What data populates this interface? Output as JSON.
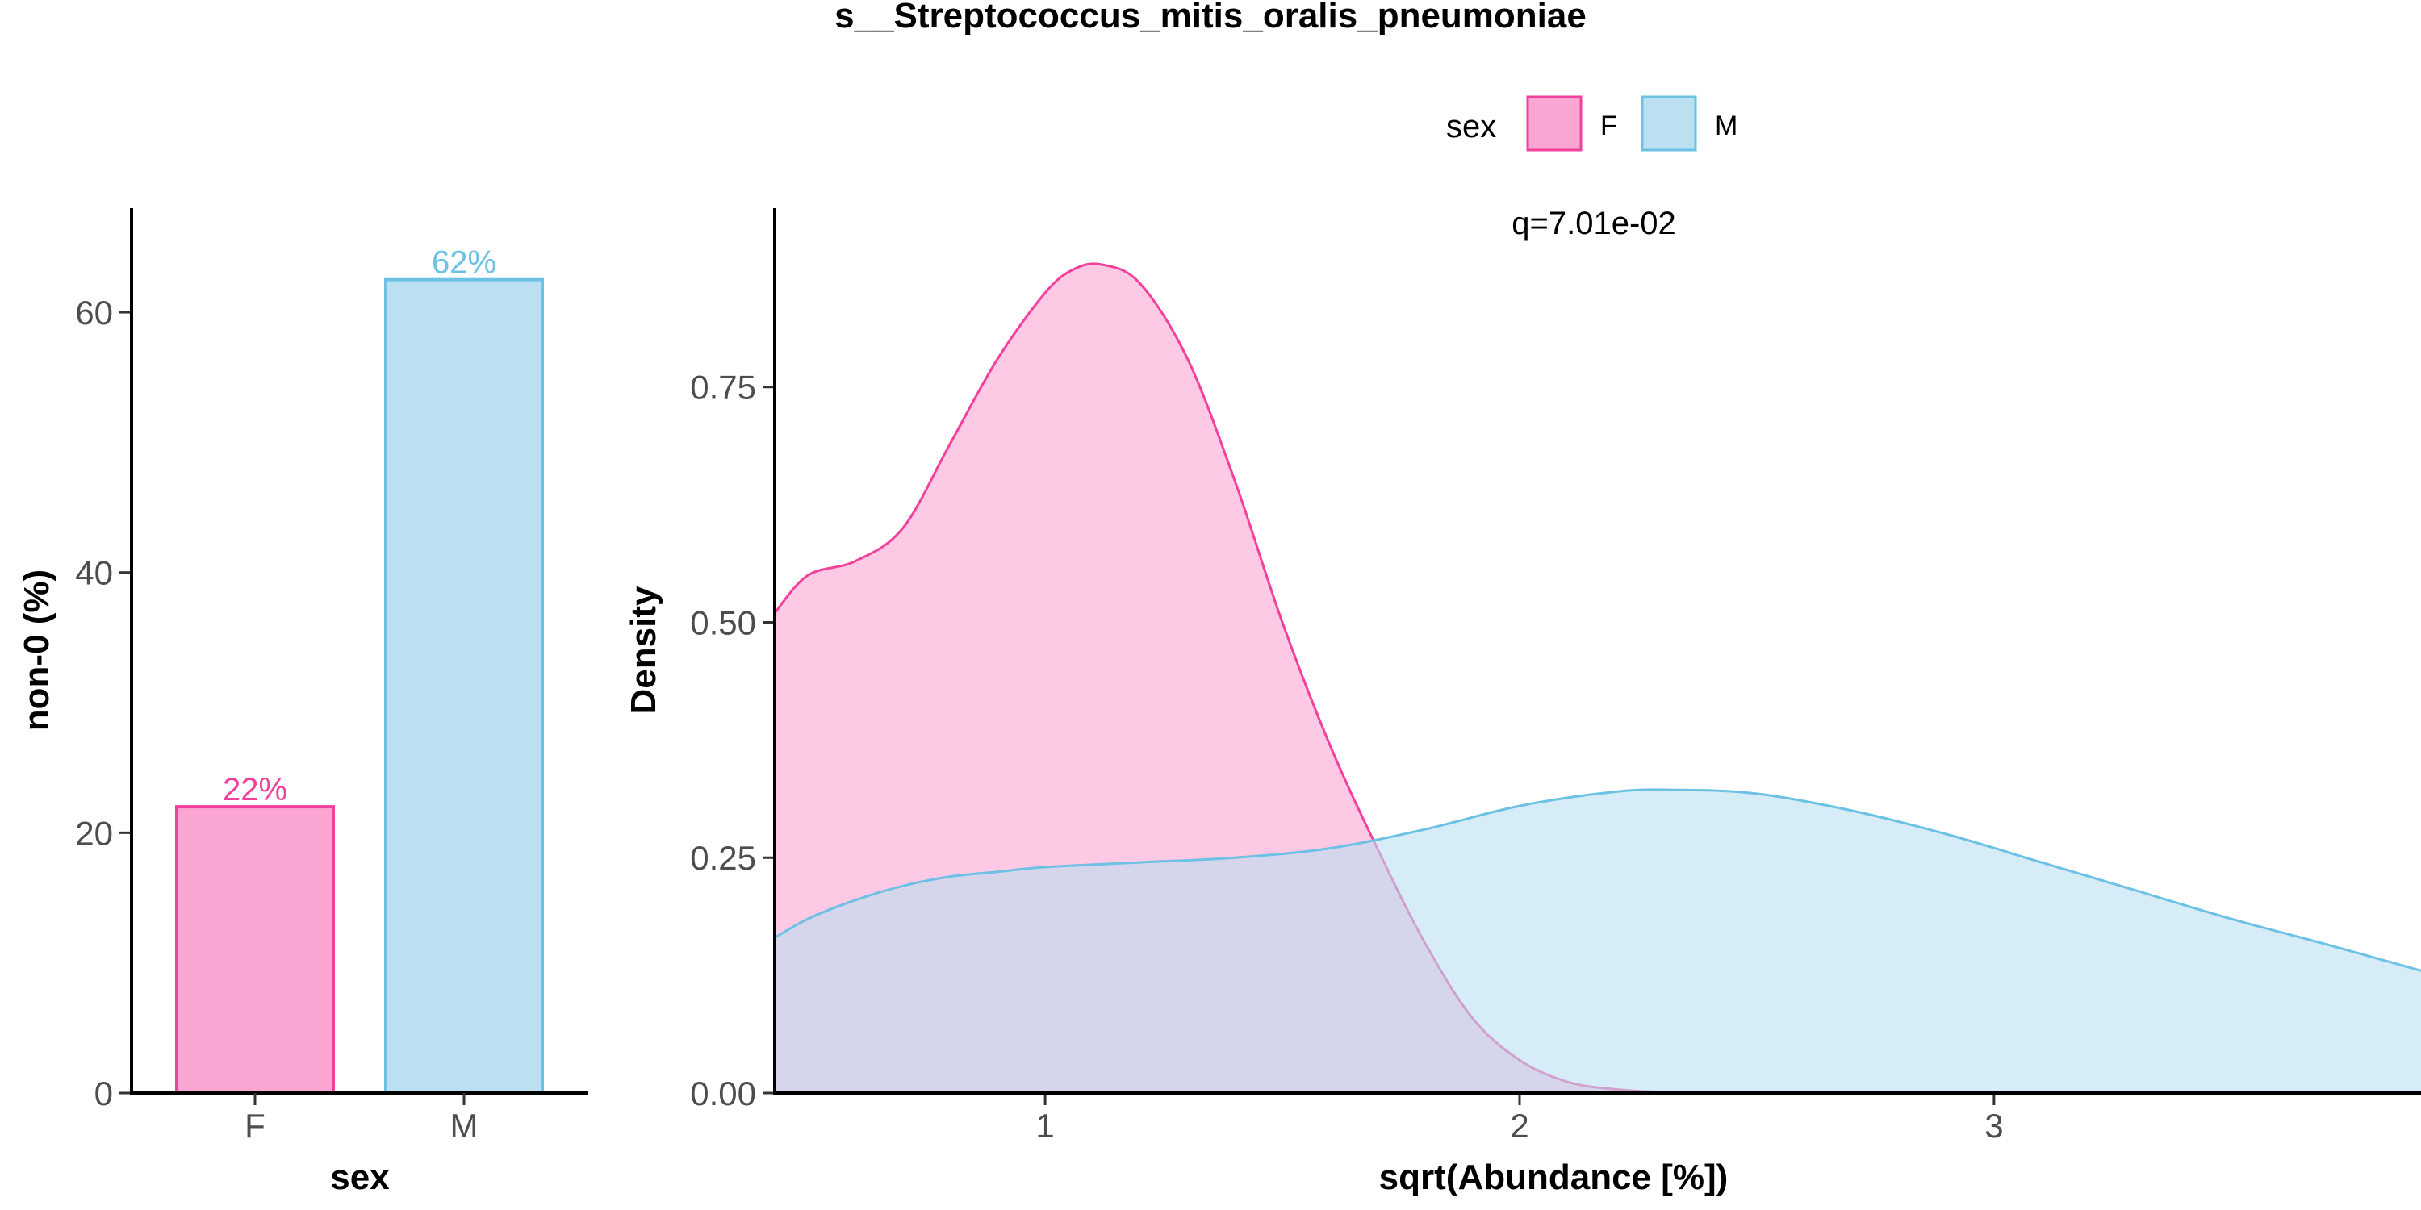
{
  "title": "s__Streptococcus_mitis_oralis_pneumoniae",
  "legend": {
    "title": "sex",
    "items": [
      {
        "label": "F",
        "fill": "#FBA5D2",
        "stroke": "#F2419C"
      },
      {
        "label": "M",
        "fill": "#BAE0F2",
        "stroke": "#6CC1E5"
      }
    ]
  },
  "annotation": "q=7.01e-02",
  "chart_data": [
    {
      "type": "bar",
      "categories": [
        "F",
        "M"
      ],
      "values": [
        22,
        62.5
      ],
      "bar_labels": [
        "22%",
        "62%"
      ],
      "xlabel": "sex",
      "ylabel": "non-0 (%)",
      "ylim": [
        0,
        68
      ],
      "yticks": [
        0,
        20,
        40,
        60
      ],
      "ytick_labels": [
        "0",
        "20",
        "40",
        "60"
      ],
      "colors": {
        "fill": [
          "#FBA5D2",
          "#BAE0F2"
        ],
        "stroke": [
          "#F2419C",
          "#6CC1E5"
        ]
      }
    },
    {
      "type": "area",
      "xlabel": "sqrt(Abundance [%])",
      "ylabel": "Density",
      "xlim": [
        0.43,
        3.9
      ],
      "ylim": [
        0,
        0.94
      ],
      "xticks": [
        1,
        2,
        3
      ],
      "xtick_labels": [
        "1",
        "2",
        "3"
      ],
      "yticks": [
        0,
        0.25,
        0.5,
        0.75
      ],
      "ytick_labels": [
        "0.00",
        "0.25",
        "0.50",
        "0.75"
      ],
      "series": [
        {
          "name": "F",
          "fill": "#FBA5D2",
          "stroke": "#F2419C",
          "x": [
            0.43,
            0.5,
            0.6,
            0.7,
            0.8,
            0.9,
            1.0,
            1.06,
            1.12,
            1.2,
            1.3,
            1.4,
            1.5,
            1.6,
            1.7,
            1.8,
            1.9,
            2.0,
            2.1,
            2.2,
            2.3,
            2.4,
            2.5
          ],
          "y": [
            0.51,
            0.55,
            0.565,
            0.6,
            0.69,
            0.78,
            0.85,
            0.875,
            0.88,
            0.86,
            0.78,
            0.65,
            0.5,
            0.37,
            0.26,
            0.16,
            0.08,
            0.035,
            0.012,
            0.004,
            0.001,
            0.0,
            0.0
          ]
        },
        {
          "name": "M",
          "fill": "#BAE0F2",
          "stroke": "#6CC1E5",
          "x": [
            0.43,
            0.5,
            0.6,
            0.7,
            0.8,
            0.9,
            1.0,
            1.2,
            1.4,
            1.6,
            1.8,
            2.0,
            2.2,
            2.33,
            2.5,
            2.7,
            2.9,
            3.1,
            3.3,
            3.5,
            3.7,
            3.9
          ],
          "y": [
            0.165,
            0.185,
            0.205,
            0.22,
            0.23,
            0.235,
            0.24,
            0.245,
            0.25,
            0.26,
            0.28,
            0.305,
            0.32,
            0.322,
            0.318,
            0.3,
            0.275,
            0.245,
            0.215,
            0.185,
            0.158,
            0.13
          ]
        }
      ]
    }
  ]
}
